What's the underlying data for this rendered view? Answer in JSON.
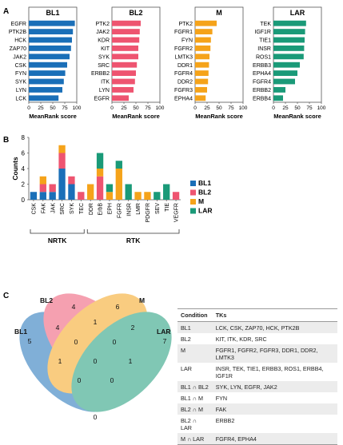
{
  "panels": {
    "a": "A",
    "b": "B",
    "c": "C"
  },
  "bar_colors": {
    "BL1": "#1a6fb8",
    "BL2": "#ee5470",
    "M": "#f5a31a",
    "LAR": "#1a9a78"
  },
  "chart_data": [
    {
      "type": "bar",
      "orientation": "horizontal",
      "title": "BL1",
      "xlabel": "MeanRank score",
      "xlim": [
        0,
        100
      ],
      "xticks": [
        0,
        25,
        50,
        75,
        100
      ],
      "categories": [
        "LCK",
        "LYN",
        "SYK",
        "FYN",
        "CSK",
        "JAK2",
        "ZAP70",
        "HCK",
        "PTK2B",
        "EGFR"
      ],
      "values": [
        62,
        70,
        73,
        76,
        80,
        85,
        88,
        90,
        92,
        96
      ]
    },
    {
      "type": "bar",
      "orientation": "horizontal",
      "title": "BL2",
      "xlabel": "MeanRank score",
      "xlim": [
        0,
        100
      ],
      "xticks": [
        0,
        25,
        50,
        75,
        100
      ],
      "categories": [
        "EGFR",
        "LYN",
        "ITK",
        "ERBB2",
        "SRC",
        "SYK",
        "KIT",
        "KDR",
        "JAK2",
        "PTK2"
      ],
      "values": [
        35,
        45,
        48,
        50,
        52,
        55,
        55,
        57,
        58,
        60
      ]
    },
    {
      "type": "bar",
      "orientation": "horizontal",
      "title": "M",
      "xlabel": "MeanRank score",
      "xlim": [
        0,
        100
      ],
      "xticks": [
        0,
        25,
        50,
        75,
        100
      ],
      "categories": [
        "EPHA4",
        "FGFR3",
        "DDR2",
        "FGFR4",
        "DDR1",
        "LMTK3",
        "FGFR2",
        "FYN",
        "FGFR1",
        "PTK2"
      ],
      "values": [
        22,
        25,
        27,
        28,
        29,
        30,
        32,
        33,
        36,
        45
      ]
    },
    {
      "type": "bar",
      "orientation": "horizontal",
      "title": "LAR",
      "xlabel": "MeanRank score",
      "xlim": [
        0,
        100
      ],
      "xticks": [
        0,
        25,
        50,
        75,
        100
      ],
      "categories": [
        "ERBB4",
        "ERBB2",
        "FGFR4",
        "EPHA4",
        "ERBB3",
        "ROS1",
        "INSR",
        "TIE1",
        "IGF1R",
        "TEK"
      ],
      "values": [
        20,
        25,
        45,
        50,
        55,
        63,
        64,
        65,
        66,
        68
      ]
    },
    {
      "type": "bar",
      "stacked": true,
      "ylabel": "Counts",
      "ylim": [
        0,
        8
      ],
      "yticks": [
        0,
        2,
        4,
        6,
        8
      ],
      "legend_position": "right",
      "categories": [
        "CSK",
        "FAK",
        "JAK",
        "SRC",
        "SYK",
        "TEC",
        "DDR",
        "ErbB",
        "EPH",
        "FGFR",
        "INSR",
        "LMR",
        "PDGFR",
        "SEV",
        "TIE",
        "VEGFR"
      ],
      "groups": [
        {
          "label": "NRTK",
          "from": 0,
          "to": 5
        },
        {
          "label": "RTK",
          "from": 6,
          "to": 15
        }
      ],
      "series": [
        {
          "name": "BL1",
          "values": [
            1,
            1,
            1,
            4,
            2,
            0,
            0,
            0,
            0,
            0,
            0,
            0,
            0,
            0,
            0,
            0
          ]
        },
        {
          "name": "BL2",
          "values": [
            0,
            1,
            1,
            2,
            1,
            1,
            0,
            3,
            0,
            0,
            0,
            0,
            0,
            0,
            0,
            1
          ]
        },
        {
          "name": "M",
          "values": [
            0,
            1,
            0,
            1,
            0,
            0,
            2,
            1,
            1,
            4,
            0,
            1,
            1,
            0,
            0,
            0
          ]
        },
        {
          "name": "LAR",
          "values": [
            0,
            0,
            0,
            0,
            0,
            0,
            0,
            2,
            1,
            1,
            2,
            0,
            0,
            1,
            2,
            0
          ]
        }
      ]
    }
  ],
  "venn": {
    "sets": [
      "BL1",
      "BL2",
      "M",
      "LAR"
    ],
    "regions": {
      "BL1": "5",
      "BL2": "4",
      "M": "6",
      "LAR": "7",
      "BL1_BL2": "4",
      "BL2_M": "1",
      "M_LAR": "2",
      "BL1_M": "1",
      "BL2_LAR": "1",
      "BL1_BL2_M": "0",
      "BL2_M_LAR": "0",
      "BL1_BL2_LAR": "0",
      "BL1_M_LAR": "0",
      "all": "0",
      "BL1_LAR": "0"
    }
  },
  "table": {
    "headers": [
      "Condition",
      "TKs"
    ],
    "rows": [
      [
        "BL1",
        "LCK, CSK, ZAP70, HCK, PTK2B"
      ],
      [
        "BL2",
        "KIT, ITK, KDR, SRC"
      ],
      [
        "M",
        "FGFR1, FGFR2, FGFR3, DDR1, DDR2, LMTK3"
      ],
      [
        "LAR",
        "INSR, TEK, TIE1, ERBB3, ROS1, ERBB4, IGF1R"
      ],
      [
        "BL1 ∩ BL2",
        "SYK, LYN, EGFR, JAK2"
      ],
      [
        "BL1 ∩ M",
        "FYN"
      ],
      [
        "BL2 ∩ M",
        "FAK"
      ],
      [
        "BL2 ∩ LAR",
        "ERBB2"
      ],
      [
        "M ∩ LAR",
        "FGFR4, EPHA4"
      ]
    ]
  }
}
